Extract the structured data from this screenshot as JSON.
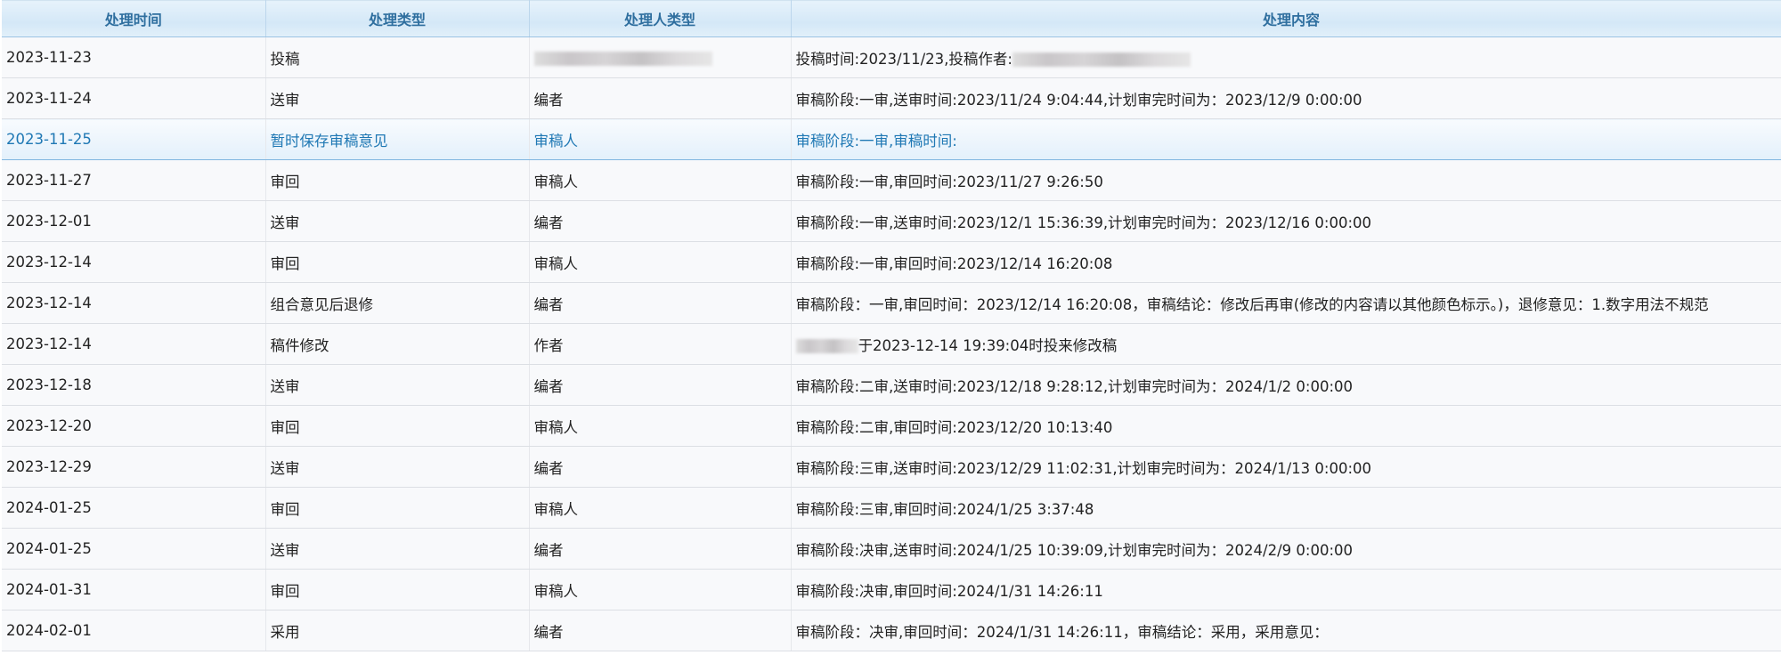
{
  "headers": [
    "处理时间",
    "处理类型",
    "处理人类型",
    "处理内容"
  ],
  "rows": [
    {
      "date": "2023-11-23",
      "type": "投稿",
      "actor": "",
      "actor_redacted": true,
      "content": "投稿时间:2023/11/23,投稿作者:",
      "content_redacted_suffix": true
    },
    {
      "date": "2023-11-24",
      "type": "送审",
      "actor": "编者",
      "content": "审稿阶段:一审,送审时间:2023/11/24 9:04:44,计划审完时间为：2023/12/9 0:00:00"
    },
    {
      "date": "2023-11-25",
      "type": "暂时保存审稿意见",
      "actor": "审稿人",
      "content": "审稿阶段:一审,审稿时间:",
      "highlighted": true
    },
    {
      "date": "2023-11-27",
      "type": "审回",
      "actor": "审稿人",
      "content": "审稿阶段:一审,审回时间:2023/11/27 9:26:50"
    },
    {
      "date": "2023-12-01",
      "type": "送审",
      "actor": "编者",
      "content": "审稿阶段:一审,送审时间:2023/12/1 15:36:39,计划审完时间为：2023/12/16 0:00:00"
    },
    {
      "date": "2023-12-14",
      "type": "审回",
      "actor": "审稿人",
      "content": "审稿阶段:一审,审回时间:2023/12/14 16:20:08"
    },
    {
      "date": "2023-12-14",
      "type": "组合意见后退修",
      "actor": "编者",
      "content": "审稿阶段：一审,审回时间：2023/12/14 16:20:08，审稿结论：修改后再审(修改的内容请以其他颜色标示。)，退修意见：1.数字用法不规范"
    },
    {
      "date": "2023-12-14",
      "type": "稿件修改",
      "actor": "作者",
      "content": "于2023-12-14 19:39:04时投来修改稿",
      "content_redacted_prefix": true
    },
    {
      "date": "2023-12-18",
      "type": "送审",
      "actor": "编者",
      "content": "审稿阶段:二审,送审时间:2023/12/18 9:28:12,计划审完时间为：2024/1/2 0:00:00"
    },
    {
      "date": "2023-12-20",
      "type": "审回",
      "actor": "审稿人",
      "content": "审稿阶段:二审,审回时间:2023/12/20 10:13:40"
    },
    {
      "date": "2023-12-29",
      "type": "送审",
      "actor": "编者",
      "content": "审稿阶段:三审,送审时间:2023/12/29 11:02:31,计划审完时间为：2024/1/13 0:00:00"
    },
    {
      "date": "2024-01-25",
      "type": "审回",
      "actor": "审稿人",
      "content": "审稿阶段:三审,审回时间:2024/1/25 3:37:48"
    },
    {
      "date": "2024-01-25",
      "type": "送审",
      "actor": "编者",
      "content": "审稿阶段:决审,送审时间:2024/1/25 10:39:09,计划审完时间为：2024/2/9 0:00:00"
    },
    {
      "date": "2024-01-31",
      "type": "审回",
      "actor": "审稿人",
      "content": "审稿阶段:决审,审回时间:2024/1/31 14:26:11"
    },
    {
      "date": "2024-02-01",
      "type": "采用",
      "actor": "编者",
      "content": "审稿阶段：决审,审回时间：2024/1/31 14:26:11，审稿结论：采用，采用意见："
    }
  ],
  "colors": {
    "header_text": "#2f6f9f",
    "highlight_text": "#1f78b4",
    "row_bg": "#f8f9fb"
  }
}
